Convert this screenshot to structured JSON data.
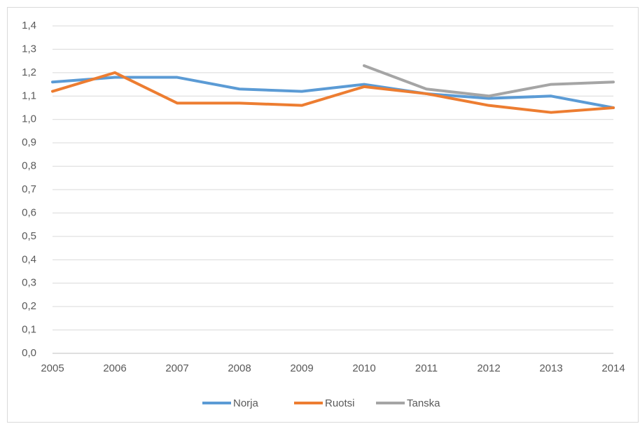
{
  "chart_data": {
    "type": "line",
    "x": [
      2005,
      2006,
      2007,
      2008,
      2009,
      2010,
      2011,
      2012,
      2013,
      2014
    ],
    "xlim": [
      2005,
      2014
    ],
    "xticks": [
      2005,
      2006,
      2007,
      2008,
      2009,
      2010,
      2011,
      2012,
      2013,
      2014
    ],
    "ylim": [
      0,
      1.4
    ],
    "yticks": [
      {
        "value": 0,
        "label": "0,0"
      },
      {
        "value": 0.1,
        "label": "0,1"
      },
      {
        "value": 0.2,
        "label": "0,2"
      },
      {
        "value": 0.3,
        "label": "0,3"
      },
      {
        "value": 0.4,
        "label": "0,4"
      },
      {
        "value": 0.5,
        "label": "0,5"
      },
      {
        "value": 0.6,
        "label": "0,6"
      },
      {
        "value": 0.7,
        "label": "0,7"
      },
      {
        "value": 0.8,
        "label": "0,8"
      },
      {
        "value": 0.9,
        "label": "0,9"
      },
      {
        "value": 1.0,
        "label": "1,0"
      },
      {
        "value": 1.1,
        "label": "1,1"
      },
      {
        "value": 1.2,
        "label": "1,2"
      },
      {
        "value": 1.3,
        "label": "1,3"
      },
      {
        "value": 1.4,
        "label": "1,4"
      }
    ],
    "grid": true,
    "legend": "bottom",
    "series": [
      {
        "name": "Norja",
        "color": "#5b9bd5",
        "values": [
          1.16,
          1.18,
          1.18,
          1.13,
          1.12,
          1.15,
          1.11,
          1.09,
          1.1,
          1.05
        ]
      },
      {
        "name": "Ruotsi",
        "color": "#ed7d31",
        "values": [
          1.12,
          1.2,
          1.07,
          1.07,
          1.06,
          1.14,
          1.11,
          1.06,
          1.03,
          1.05
        ]
      },
      {
        "name": "Tanska",
        "color": "#a5a5a5",
        "values": [
          null,
          null,
          null,
          null,
          null,
          1.23,
          1.13,
          1.1,
          1.15,
          1.16
        ]
      }
    ]
  }
}
